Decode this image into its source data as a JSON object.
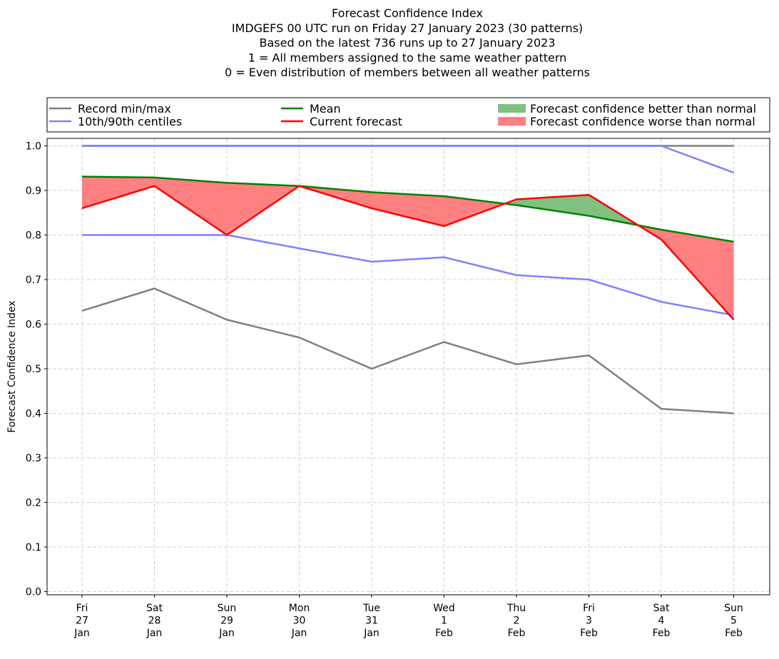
{
  "chart_data": {
    "type": "line",
    "title_lines": [
      "Forecast Confidence Index",
      "IMDGEFS 00 UTC run on Friday 27 January 2023 (30 patterns)",
      "Based on the latest 736 runs up to 27 January 2023",
      "1 = All members assigned to the same weather pattern",
      "0 = Even distribution of members between all weather patterns"
    ],
    "ylabel": "Forecast Confidence Index",
    "ylim": [
      0,
      1
    ],
    "yticks": [
      "0.0",
      "0.1",
      "0.2",
      "0.3",
      "0.4",
      "0.5",
      "0.6",
      "0.7",
      "0.8",
      "0.9",
      "1.0"
    ],
    "grid": true,
    "categories": [
      [
        "Fri",
        "27",
        "Jan"
      ],
      [
        "Sat",
        "28",
        "Jan"
      ],
      [
        "Sun",
        "29",
        "Jan"
      ],
      [
        "Mon",
        "30",
        "Jan"
      ],
      [
        "Tue",
        "31",
        "Jan"
      ],
      [
        "Wed",
        "1",
        "Feb"
      ],
      [
        "Thu",
        "2",
        "Feb"
      ],
      [
        "Fri",
        "3",
        "Feb"
      ],
      [
        "Sat",
        "4",
        "Feb"
      ],
      [
        "Sun",
        "5",
        "Feb"
      ]
    ],
    "series": [
      {
        "name": "Record min/max",
        "key": "record_min",
        "color": "#808080",
        "values": [
          0.63,
          0.68,
          0.61,
          0.57,
          0.5,
          0.56,
          0.51,
          0.53,
          0.41,
          0.4
        ]
      },
      {
        "name": "Record min/max",
        "key": "record_max",
        "color": "#808080",
        "values": [
          1.0,
          1.0,
          1.0,
          1.0,
          1.0,
          1.0,
          1.0,
          1.0,
          1.0,
          1.0
        ]
      },
      {
        "name": "10th/90th centiles",
        "key": "p10",
        "color": "#8080ff",
        "values": [
          0.8,
          0.8,
          0.8,
          0.77,
          0.74,
          0.75,
          0.71,
          0.7,
          0.65,
          0.62
        ]
      },
      {
        "name": "10th/90th centiles",
        "key": "p90",
        "color": "#8080ff",
        "values": [
          1.0,
          1.0,
          1.0,
          1.0,
          1.0,
          1.0,
          1.0,
          1.0,
          1.0,
          0.94
        ]
      },
      {
        "name": "Mean",
        "key": "mean",
        "color": "#008000",
        "values": [
          0.931,
          0.929,
          0.917,
          0.91,
          0.896,
          0.887,
          0.867,
          0.843,
          0.812,
          0.785
        ]
      },
      {
        "name": "Current forecast",
        "key": "current",
        "color": "#ff0000",
        "values": [
          0.86,
          0.91,
          0.8,
          0.91,
          0.86,
          0.82,
          0.88,
          0.89,
          0.79,
          0.61
        ]
      }
    ],
    "fills": {
      "better": {
        "label": "Forecast confidence better than normal",
        "color": "#80c080"
      },
      "worse": {
        "label": "Forecast confidence worse than normal",
        "color": "#ff8080"
      }
    },
    "legend": {
      "placement": "top",
      "entries": [
        {
          "label": "Record min/max",
          "kind": "line",
          "color": "#808080"
        },
        {
          "label": "Mean",
          "kind": "line",
          "color": "#008000"
        },
        {
          "label": "Forecast confidence better than normal",
          "kind": "patch",
          "color": "#80c080"
        },
        {
          "label": "10th/90th centiles",
          "kind": "line",
          "color": "#8080ff"
        },
        {
          "label": "Current forecast",
          "kind": "line",
          "color": "#ff0000"
        },
        {
          "label": "Forecast confidence worse than normal",
          "kind": "patch",
          "color": "#ff8080"
        }
      ]
    }
  }
}
